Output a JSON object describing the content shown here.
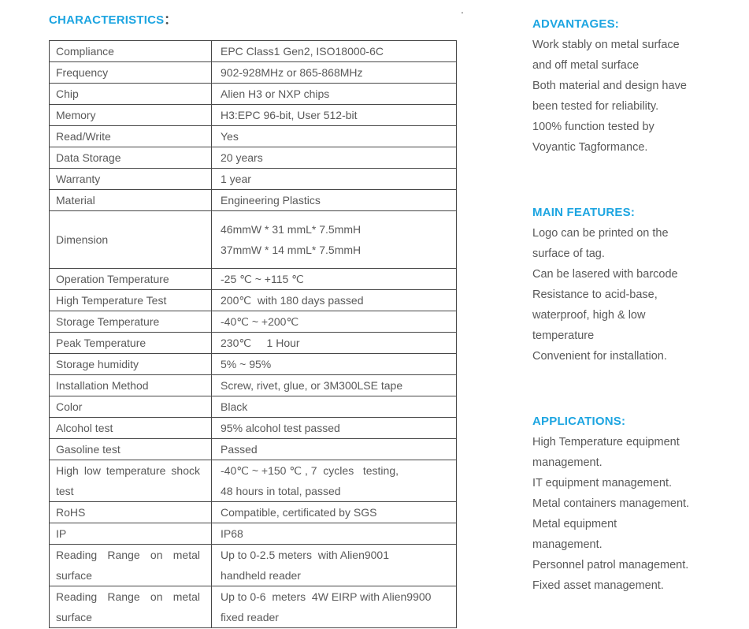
{
  "page": {
    "stray_dot": ".",
    "colors": {
      "accent_blue": "#1da5e1",
      "body_text": "#595959",
      "table_border": "#474747"
    }
  },
  "characteristics": {
    "heading_text": "CHARACTERISTICS",
    "heading_colon": "：",
    "rows": [
      {
        "label": "Compliance",
        "lines": [
          "EPC Class1 Gen2, ISO18000-6C"
        ]
      },
      {
        "label": "Frequency",
        "lines": [
          "902-928MHz or 865-868MHz"
        ]
      },
      {
        "label": "Chip",
        "lines": [
          "Alien H3 or NXP chips"
        ]
      },
      {
        "label": "Memory",
        "lines": [
          "H3:EPC 96-bit, User 512-bit"
        ]
      },
      {
        "label": "Read/Write",
        "lines": [
          "Yes"
        ]
      },
      {
        "label": "Data Storage",
        "lines": [
          "20 years"
        ]
      },
      {
        "label": "Warranty",
        "lines": [
          "1 year"
        ]
      },
      {
        "label": "Material",
        "lines": [
          "Engineering Plastics"
        ]
      },
      {
        "label": "Dimension",
        "lines": [
          "46mmW * 31 mmL* 7.5mmH",
          "37mmW * 14 mmL* 7.5mmH"
        ],
        "tall": true
      },
      {
        "label": "Operation Temperature",
        "lines": [
          "-25 ℃ ~ +115 ℃"
        ]
      },
      {
        "label": "High Temperature Test",
        "lines": [
          "200℃  with 180 days passed"
        ]
      },
      {
        "label": "Storage Temperature",
        "lines": [
          "-40℃ ~ +200℃"
        ]
      },
      {
        "label": "Peak Temperature",
        "lines": [
          "230℃     1 Hour"
        ]
      },
      {
        "label": "Storage humidity",
        "lines": [
          "5% ~ 95%"
        ]
      },
      {
        "label": "Installation Method",
        "lines": [
          "Screw, rivet, glue, or 3M300LSE tape"
        ]
      },
      {
        "label": "Color",
        "lines": [
          "Black"
        ]
      },
      {
        "label": "Alcohol test",
        "lines": [
          "95% alcohol test passed"
        ]
      },
      {
        "label": "Gasoline test",
        "lines": [
          "Passed"
        ]
      },
      {
        "label": "High low temperature shock test",
        "lines": [
          "-40℃ ~ +150 ℃ , 7  cycles   testing,",
          "48 hours in total, passed"
        ]
      },
      {
        "label": "RoHS",
        "lines": [
          "Compatible, certificated by SGS"
        ]
      },
      {
        "label": "IP",
        "lines": [
          "IP68"
        ]
      },
      {
        "label": "Reading Range on metal surface",
        "lines": [
          "Up to 0-2.5 meters  with Alien9001",
          "handheld reader"
        ]
      },
      {
        "label": "Reading Range on metal surface",
        "lines": [
          "Up to 0-6  meters  4W EIRP with Alien9900",
          "fixed reader"
        ]
      }
    ]
  },
  "sections": [
    {
      "id": "advantages",
      "heading": "ADVANTAGES:",
      "lines": [
        "Work stably on metal surface",
        "and off metal surface",
        "Both material and design have",
        "been tested for reliability.",
        "100% function tested by",
        "Voyantic Tagformance."
      ]
    },
    {
      "id": "main-features",
      "heading": "MAIN FEATURES:",
      "lines": [
        "Logo can be printed on the",
        "surface of tag.",
        "Can be lasered with barcode",
        "Resistance to acid-base,",
        "waterproof, high & low",
        "temperature",
        "Convenient for installation."
      ]
    },
    {
      "id": "applications",
      "heading": "APPLICATIONS:",
      "lines": [
        "High Temperature equipment",
        "management.",
        "IT equipment management.",
        "Metal containers management.",
        "Metal equipment",
        "management.",
        "Personnel patrol management.",
        "Fixed asset management."
      ]
    }
  ]
}
